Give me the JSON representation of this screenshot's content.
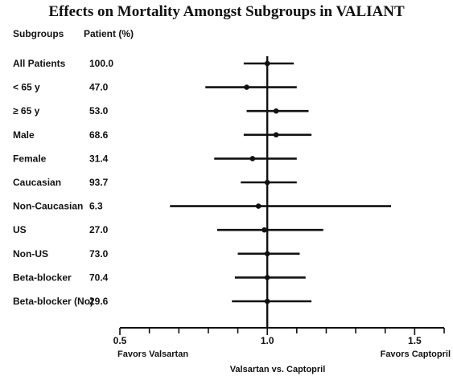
{
  "title": "Effects on Mortality Amongst Subgroups in VALIANT",
  "header": {
    "subgroups_label": "Subgroups",
    "patient_label": "Patient (%)"
  },
  "chart_data": {
    "type": "forest",
    "title": "Effects on Mortality Amongst Subgroups in VALIANT",
    "xlabel": "Valsartan vs. Captopril",
    "left_note": "Favors Valsartan",
    "right_note": "Favors Captopril",
    "xlim": [
      0.5,
      1.6
    ],
    "xticks": [
      0.5,
      1.0,
      1.5
    ],
    "xtick_labels": [
      "0.5",
      "1.0",
      "1.5"
    ],
    "reference_line": 1.0,
    "rows": [
      {
        "subgroup": "All Patients",
        "patient_pct": "100.0",
        "estimate": 1.0,
        "lower": 0.92,
        "upper": 1.09
      },
      {
        "subgroup": "< 65 y",
        "patient_pct": "47.0",
        "estimate": 0.93,
        "lower": 0.79,
        "upper": 1.1
      },
      {
        "subgroup": "≥ 65 y",
        "patient_pct": "53.0",
        "estimate": 1.03,
        "lower": 0.93,
        "upper": 1.14
      },
      {
        "subgroup": "Male",
        "patient_pct": "68.6",
        "estimate": 1.03,
        "lower": 0.92,
        "upper": 1.15
      },
      {
        "subgroup": "Female",
        "patient_pct": "31.4",
        "estimate": 0.95,
        "lower": 0.82,
        "upper": 1.1
      },
      {
        "subgroup": "Caucasian",
        "patient_pct": "93.7",
        "estimate": 1.0,
        "lower": 0.91,
        "upper": 1.1
      },
      {
        "subgroup": "Non-Caucasian",
        "patient_pct": "6.3",
        "estimate": 0.97,
        "lower": 0.67,
        "upper": 1.42
      },
      {
        "subgroup": "US",
        "patient_pct": "27.0",
        "estimate": 0.99,
        "lower": 0.83,
        "upper": 1.19
      },
      {
        "subgroup": "Non-US",
        "patient_pct": "73.0",
        "estimate": 1.0,
        "lower": 0.9,
        "upper": 1.11
      },
      {
        "subgroup": "Beta-blocker",
        "patient_pct": "70.4",
        "estimate": 1.0,
        "lower": 0.89,
        "upper": 1.13
      },
      {
        "subgroup": "Beta-blocker (No)",
        "patient_pct": "29.6",
        "estimate": 1.0,
        "lower": 0.88,
        "upper": 1.15
      }
    ]
  }
}
